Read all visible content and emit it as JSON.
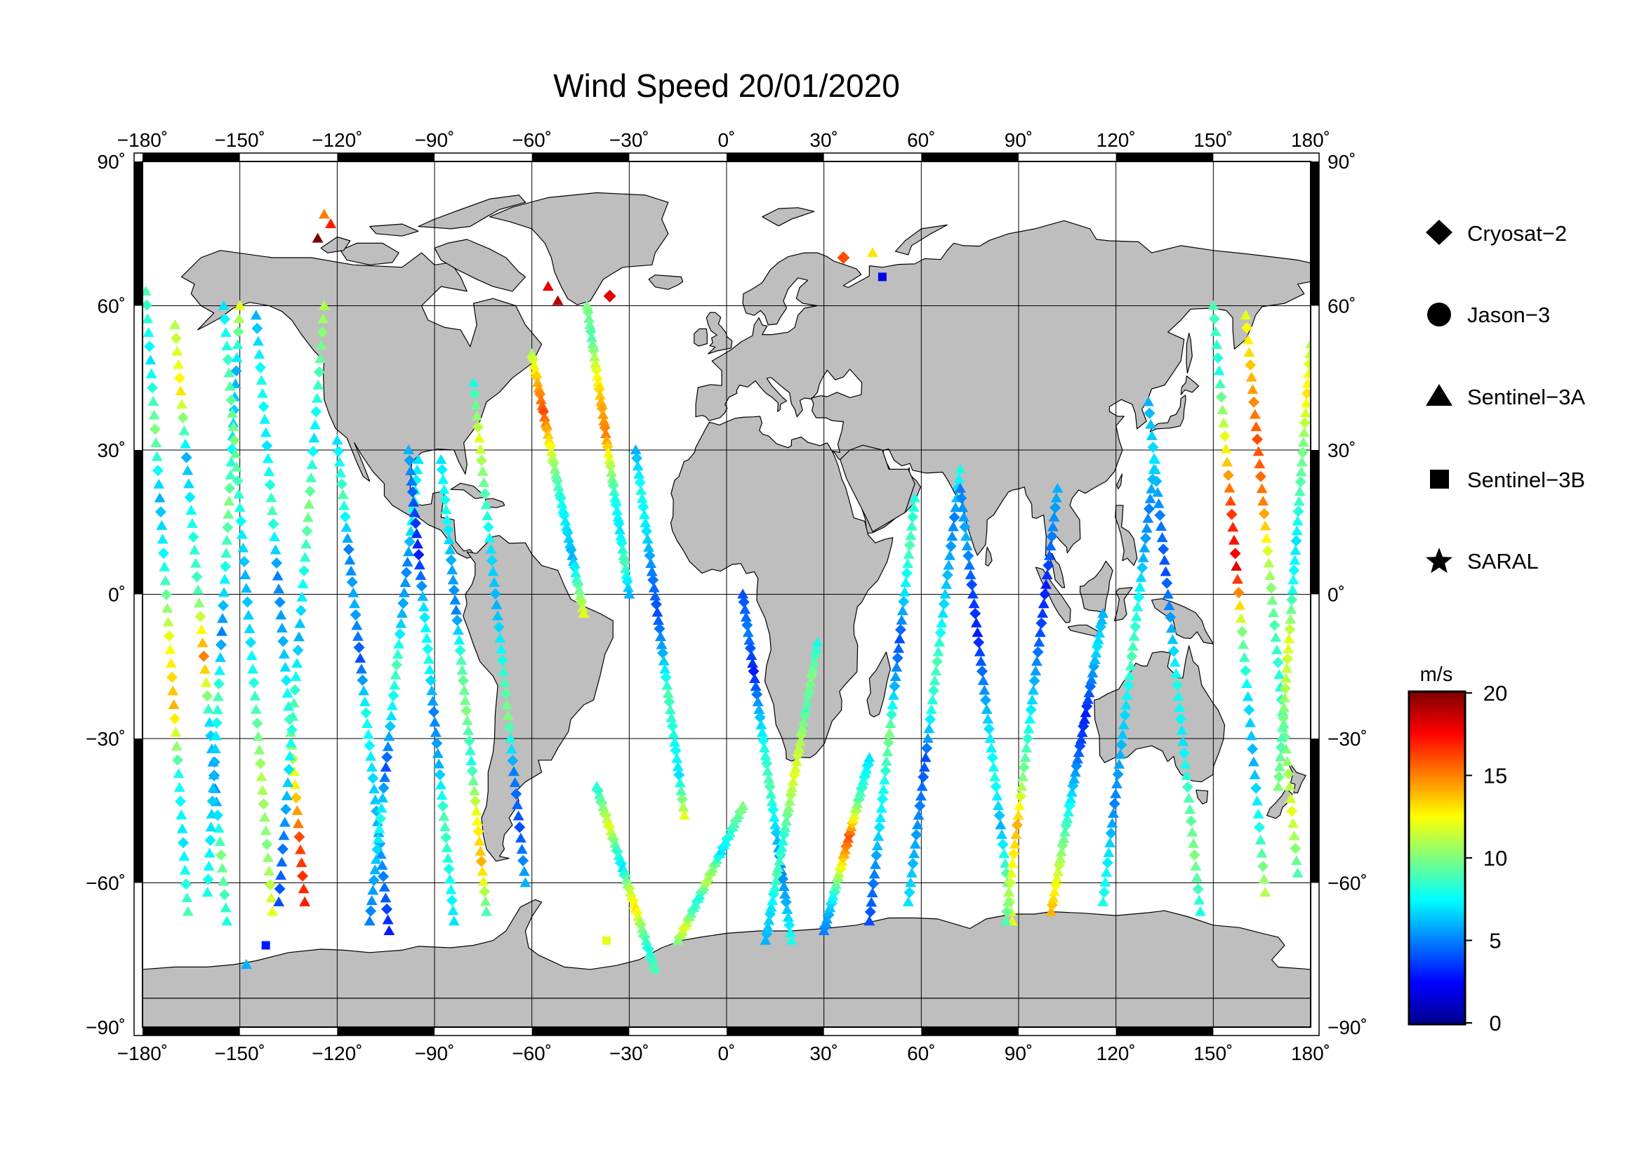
{
  "title": "Wind Speed 20/01/2020",
  "map": {
    "lon_range": [
      -180,
      180
    ],
    "lat_range": [
      -90,
      90
    ],
    "lon_ticks": [
      "−180˚",
      "−150˚",
      "−120˚",
      "−90˚",
      "−60˚",
      "−30˚",
      "0˚",
      "30˚",
      "60˚",
      "90˚",
      "120˚",
      "150˚",
      "180˚"
    ],
    "lat_ticks_left": [
      "90˚",
      "60˚",
      "30˚",
      "0˚",
      "−30˚",
      "−60˚",
      "−90˚"
    ],
    "lat_ticks_right": [
      "90˚",
      "60˚",
      "30˚",
      "0˚",
      "−30˚",
      "−60˚",
      "−90˚"
    ],
    "grid": true,
    "land_color": "#bebebe",
    "ocean_color": "#ffffff"
  },
  "legend": {
    "items": [
      {
        "label": "Cryosat−2",
        "symbol": "diamond"
      },
      {
        "label": "Jason−3",
        "symbol": "circle"
      },
      {
        "label": "Sentinel−3A",
        "symbol": "triangle"
      },
      {
        "label": "Sentinel−3B",
        "symbol": "square"
      },
      {
        "label": "SARAL",
        "symbol": "star"
      }
    ]
  },
  "colorbar": {
    "unit": "m/s",
    "range": [
      0,
      20
    ],
    "ticks": [
      "20",
      "15",
      "10",
      "5",
      "0"
    ],
    "colormap": [
      "#00008f",
      "#0000ff",
      "#007fff",
      "#00ffff",
      "#7fff7f",
      "#ffff00",
      "#ff7f00",
      "#ff0000",
      "#7f0000"
    ]
  },
  "chart_data": {
    "type": "scatter",
    "title": "Wind Speed 20/01/2020",
    "x_unit": "longitude (degrees)",
    "y_unit": "latitude (degrees)",
    "value_unit": "m/s",
    "tracks": [
      {
        "lon": [
          -179,
          -166
        ],
        "lat": [
          63,
          -66
        ],
        "wind": [
          9,
          7,
          10,
          6,
          8,
          12,
          14,
          8,
          7,
          9
        ]
      },
      {
        "lon": [
          -170,
          -154
        ],
        "lat": [
          56,
          -68
        ],
        "wind": [
          11,
          13,
          6,
          8,
          9,
          15,
          7,
          5,
          10,
          8
        ]
      },
      {
        "lon": [
          -160,
          -150
        ],
        "lat": [
          -62,
          60
        ],
        "wind": [
          8,
          7,
          6,
          9,
          5,
          8,
          10,
          7,
          6,
          12
        ]
      },
      {
        "lon": [
          -155,
          -140
        ],
        "lat": [
          60,
          -66
        ],
        "wind": [
          7,
          9,
          10,
          8,
          6,
          7,
          9,
          11,
          10,
          12
        ]
      },
      {
        "lon": [
          -145,
          -130
        ],
        "lat": [
          58,
          -64
        ],
        "wind": [
          6,
          8,
          7,
          9,
          5,
          6,
          8,
          12,
          16,
          17
        ]
      },
      {
        "lon": [
          -138,
          -124
        ],
        "lat": [
          -64,
          60
        ],
        "wind": [
          4,
          5,
          7,
          9,
          6,
          8,
          10,
          7,
          9,
          11
        ]
      },
      {
        "lon": [
          -120,
          -104
        ],
        "lat": [
          32,
          -70
        ],
        "wind": [
          7,
          9,
          5,
          6,
          4,
          8,
          7,
          6,
          5,
          3
        ]
      },
      {
        "lon": [
          -110,
          -95
        ],
        "lat": [
          -68,
          28
        ],
        "wind": [
          5,
          6,
          8,
          4,
          7,
          9,
          6,
          5,
          8,
          7
        ]
      },
      {
        "lon": [
          -98,
          -84
        ],
        "lat": [
          30,
          -68
        ],
        "wind": [
          6,
          4,
          3,
          7,
          8,
          5,
          6,
          9,
          8,
          7
        ]
      },
      {
        "lon": [
          -88,
          -74
        ],
        "lat": [
          28,
          -66
        ],
        "wind": [
          7,
          8,
          6,
          5,
          9,
          10,
          8,
          12,
          14,
          9
        ]
      },
      {
        "lon": [
          -78,
          -62
        ],
        "lat": [
          44,
          -60
        ],
        "wind": [
          8,
          12,
          9,
          7,
          6,
          8,
          10,
          5,
          4,
          6
        ]
      },
      {
        "lon": [
          -60,
          -44
        ],
        "lat": [
          50,
          -4
        ],
        "wind": [
          11,
          14,
          16,
          13,
          10,
          8,
          7,
          6,
          9,
          12
        ]
      },
      {
        "lon": [
          -43,
          -30
        ],
        "lat": [
          60,
          0
        ],
        "wind": [
          10,
          9,
          12,
          14,
          15,
          11,
          8,
          7,
          9,
          6
        ]
      },
      {
        "lon": [
          -40,
          -22
        ],
        "lat": [
          -40,
          -78
        ],
        "wind": [
          8,
          10,
          12,
          9,
          7,
          11,
          13,
          10,
          8,
          9
        ]
      },
      {
        "lon": [
          -28,
          -13
        ],
        "lat": [
          30,
          -46
        ],
        "wind": [
          6,
          8,
          7,
          5,
          4,
          6,
          9,
          8,
          7,
          12
        ]
      },
      {
        "lon": [
          -15,
          5
        ],
        "lat": [
          -72,
          -44
        ],
        "wind": [
          10,
          12,
          9,
          8,
          11,
          10,
          7,
          8,
          9,
          10
        ]
      },
      {
        "lon": [
          5,
          20
        ],
        "lat": [
          0,
          -72
        ],
        "wind": [
          4,
          5,
          3,
          6,
          8,
          9,
          7,
          5,
          6,
          8
        ]
      },
      {
        "lon": [
          12,
          28
        ],
        "lat": [
          -72,
          -10
        ],
        "wind": [
          6,
          7,
          9,
          8,
          10,
          12,
          11,
          9,
          10,
          8
        ]
      },
      {
        "lon": [
          30,
          44
        ],
        "lat": [
          -70,
          -34
        ],
        "wind": [
          5,
          6,
          8,
          11,
          14,
          16,
          12,
          9,
          8,
          7
        ]
      },
      {
        "lon": [
          44,
          58
        ],
        "lat": [
          -68,
          20
        ],
        "wind": [
          4,
          5,
          7,
          8,
          10,
          6,
          4,
          7,
          9,
          8
        ]
      },
      {
        "lon": [
          56,
          72
        ],
        "lat": [
          -64,
          26
        ],
        "wind": [
          7,
          6,
          5,
          4,
          8,
          9,
          7,
          6,
          5,
          8
        ]
      },
      {
        "lon": [
          72,
          88
        ],
        "lat": [
          22,
          -68
        ],
        "wind": [
          5,
          6,
          4,
          3,
          5,
          7,
          8,
          6,
          9,
          12
        ]
      },
      {
        "lon": [
          86,
          102
        ],
        "lat": [
          -68,
          22
        ],
        "wind": [
          9,
          12,
          14,
          10,
          8,
          6,
          4,
          3,
          5,
          6
        ]
      },
      {
        "lon": [
          100,
          116
        ],
        "lat": [
          -66,
          -4
        ],
        "wind": [
          14,
          12,
          10,
          8,
          6,
          4,
          3,
          5,
          7,
          6
        ]
      },
      {
        "lon": [
          116,
          132
        ],
        "lat": [
          -64,
          28
        ],
        "wind": [
          8,
          7,
          5,
          6,
          7,
          9,
          8,
          6,
          5,
          7
        ]
      },
      {
        "lon": [
          130,
          146
        ],
        "lat": [
          40,
          -66
        ],
        "wind": [
          6,
          7,
          5,
          4,
          6,
          8,
          7,
          9,
          10,
          8
        ]
      },
      {
        "lon": [
          150,
          166
        ],
        "lat": [
          60,
          -62
        ],
        "wind": [
          9,
          8,
          12,
          16,
          18,
          10,
          7,
          6,
          8,
          11
        ]
      },
      {
        "lon": [
          160,
          176
        ],
        "lat": [
          58,
          -58
        ],
        "wind": [
          12,
          14,
          16,
          15,
          11,
          9,
          8,
          10,
          12,
          9
        ]
      },
      {
        "lon": [
          170,
          180
        ],
        "lat": [
          -40,
          52
        ],
        "wind": [
          10,
          9,
          11,
          12,
          8,
          7,
          9,
          10,
          13,
          11
        ]
      }
    ],
    "markers": [
      {
        "symbol": "triangle",
        "lon": -124,
        "lat": 79,
        "wind": 15
      },
      {
        "symbol": "triangle",
        "lon": -122,
        "lat": 77,
        "wind": 17
      },
      {
        "symbol": "triangle",
        "lon": -126,
        "lat": 74,
        "wind": 20
      },
      {
        "symbol": "triangle",
        "lon": -55,
        "lat": 64,
        "wind": 18
      },
      {
        "symbol": "triangle",
        "lon": -52,
        "lat": 61,
        "wind": 19
      },
      {
        "symbol": "diamond",
        "lon": -36,
        "lat": 62,
        "wind": 18
      },
      {
        "symbol": "diamond",
        "lon": 36,
        "lat": 70,
        "wind": 16
      },
      {
        "symbol": "triangle",
        "lon": 45,
        "lat": 71,
        "wind": 13
      },
      {
        "symbol": "square",
        "lon": 48,
        "lat": 66,
        "wind": 2
      },
      {
        "symbol": "square",
        "lon": -142,
        "lat": -73,
        "wind": 3
      },
      {
        "symbol": "triangle",
        "lon": -148,
        "lat": -77,
        "wind": 6
      },
      {
        "symbol": "square",
        "lon": -37,
        "lat": -72,
        "wind": 12
      }
    ]
  }
}
